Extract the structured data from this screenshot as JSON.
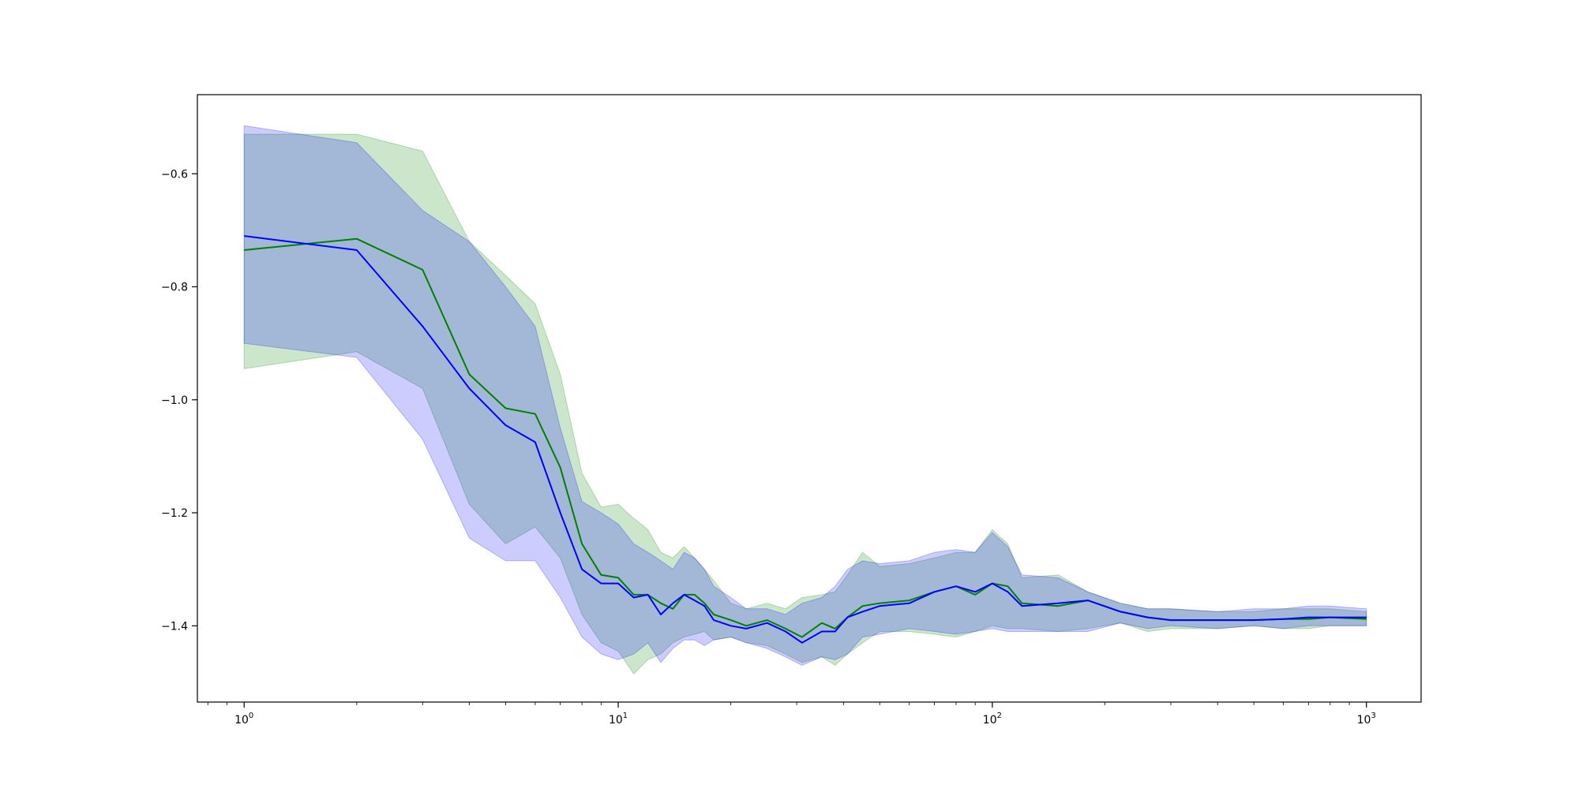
{
  "chart_data": {
    "type": "line",
    "title": "",
    "xlabel": "",
    "ylabel": "",
    "x_scale": "log",
    "xlim": [
      0.75,
      1400
    ],
    "ylim": [
      -1.535,
      -0.46
    ],
    "grid": false,
    "legend": "none",
    "x_ticks": [
      {
        "value": 1,
        "base": "10",
        "exp": "0"
      },
      {
        "value": 10,
        "base": "10",
        "exp": "1"
      },
      {
        "value": 100,
        "base": "10",
        "exp": "2"
      },
      {
        "value": 1000,
        "base": "10",
        "exp": "3"
      }
    ],
    "y_ticks": [
      {
        "value": -0.6,
        "label": "−0.6"
      },
      {
        "value": -0.8,
        "label": "−0.8"
      },
      {
        "value": -1.0,
        "label": "−1.0"
      },
      {
        "value": -1.2,
        "label": "−1.2"
      },
      {
        "value": -1.4,
        "label": "−1.4"
      }
    ],
    "series": [
      {
        "color": "#008000",
        "band_color": "#008000",
        "x": [
          1,
          2,
          3,
          4,
          5,
          6,
          7,
          8,
          9,
          10,
          11,
          12,
          13,
          14,
          15,
          16,
          17,
          18,
          20,
          22,
          25,
          28,
          31,
          35,
          38,
          41,
          45,
          50,
          60,
          70,
          80,
          90,
          100,
          110,
          120,
          150,
          180,
          220,
          260,
          300,
          400,
          500,
          600,
          700,
          800,
          1000
        ],
        "y": [
          -0.735,
          -0.715,
          -0.77,
          -0.955,
          -1.015,
          -1.025,
          -1.12,
          -1.255,
          -1.31,
          -1.315,
          -1.345,
          -1.345,
          -1.36,
          -1.37,
          -1.345,
          -1.345,
          -1.36,
          -1.38,
          -1.39,
          -1.4,
          -1.39,
          -1.405,
          -1.42,
          -1.395,
          -1.405,
          -1.385,
          -1.365,
          -1.36,
          -1.355,
          -1.34,
          -1.33,
          -1.345,
          -1.325,
          -1.33,
          -1.36,
          -1.365,
          -1.355,
          -1.375,
          -1.385,
          -1.39,
          -1.39,
          -1.39,
          -1.388,
          -1.388,
          -1.385,
          -1.388
        ],
        "upper": [
          -0.53,
          -0.53,
          -0.56,
          -0.72,
          -0.78,
          -0.83,
          -0.955,
          -1.13,
          -1.19,
          -1.185,
          -1.21,
          -1.23,
          -1.27,
          -1.28,
          -1.26,
          -1.28,
          -1.3,
          -1.32,
          -1.36,
          -1.37,
          -1.36,
          -1.37,
          -1.35,
          -1.345,
          -1.34,
          -1.31,
          -1.27,
          -1.295,
          -1.29,
          -1.28,
          -1.27,
          -1.27,
          -1.23,
          -1.255,
          -1.315,
          -1.31,
          -1.34,
          -1.36,
          -1.37,
          -1.37,
          -1.375,
          -1.375,
          -1.37,
          -1.37,
          -1.37,
          -1.375
        ],
        "lower": [
          -0.945,
          -0.915,
          -0.98,
          -1.185,
          -1.255,
          -1.225,
          -1.28,
          -1.38,
          -1.43,
          -1.445,
          -1.485,
          -1.46,
          -1.45,
          -1.43,
          -1.42,
          -1.415,
          -1.41,
          -1.425,
          -1.42,
          -1.43,
          -1.435,
          -1.45,
          -1.465,
          -1.455,
          -1.47,
          -1.45,
          -1.43,
          -1.41,
          -1.41,
          -1.415,
          -1.42,
          -1.41,
          -1.4,
          -1.405,
          -1.405,
          -1.41,
          -1.405,
          -1.395,
          -1.41,
          -1.405,
          -1.405,
          -1.4,
          -1.405,
          -1.405,
          -1.4,
          -1.4
        ]
      },
      {
        "color": "#0000ff",
        "band_color": "#0000ff",
        "x": [
          1,
          2,
          3,
          4,
          5,
          6,
          7,
          8,
          9,
          10,
          11,
          12,
          13,
          14,
          15,
          16,
          17,
          18,
          20,
          22,
          25,
          28,
          31,
          35,
          38,
          41,
          45,
          50,
          60,
          70,
          80,
          90,
          100,
          110,
          120,
          150,
          180,
          220,
          260,
          300,
          400,
          500,
          600,
          700,
          800,
          1000
        ],
        "y": [
          -0.71,
          -0.735,
          -0.87,
          -0.98,
          -1.045,
          -1.075,
          -1.2,
          -1.3,
          -1.325,
          -1.325,
          -1.35,
          -1.345,
          -1.38,
          -1.36,
          -1.345,
          -1.355,
          -1.365,
          -1.39,
          -1.4,
          -1.405,
          -1.395,
          -1.41,
          -1.43,
          -1.41,
          -1.41,
          -1.385,
          -1.375,
          -1.365,
          -1.36,
          -1.34,
          -1.33,
          -1.34,
          -1.325,
          -1.34,
          -1.365,
          -1.36,
          -1.355,
          -1.375,
          -1.385,
          -1.39,
          -1.39,
          -1.39,
          -1.388,
          -1.385,
          -1.385,
          -1.385
        ],
        "upper": [
          -0.515,
          -0.545,
          -0.665,
          -0.72,
          -0.8,
          -0.87,
          -1.05,
          -1.18,
          -1.2,
          -1.22,
          -1.255,
          -1.27,
          -1.285,
          -1.3,
          -1.27,
          -1.28,
          -1.3,
          -1.33,
          -1.35,
          -1.37,
          -1.37,
          -1.38,
          -1.36,
          -1.35,
          -1.33,
          -1.3,
          -1.285,
          -1.29,
          -1.285,
          -1.27,
          -1.265,
          -1.27,
          -1.235,
          -1.26,
          -1.31,
          -1.315,
          -1.34,
          -1.36,
          -1.37,
          -1.37,
          -1.375,
          -1.37,
          -1.37,
          -1.365,
          -1.365,
          -1.37
        ],
        "lower": [
          -0.9,
          -0.925,
          -1.07,
          -1.245,
          -1.285,
          -1.285,
          -1.35,
          -1.42,
          -1.45,
          -1.46,
          -1.45,
          -1.43,
          -1.465,
          -1.44,
          -1.425,
          -1.425,
          -1.435,
          -1.425,
          -1.42,
          -1.43,
          -1.44,
          -1.455,
          -1.47,
          -1.455,
          -1.46,
          -1.45,
          -1.42,
          -1.415,
          -1.405,
          -1.41,
          -1.415,
          -1.41,
          -1.405,
          -1.41,
          -1.41,
          -1.41,
          -1.41,
          -1.395,
          -1.405,
          -1.4,
          -1.405,
          -1.4,
          -1.405,
          -1.4,
          -1.4,
          -1.4
        ]
      }
    ]
  }
}
